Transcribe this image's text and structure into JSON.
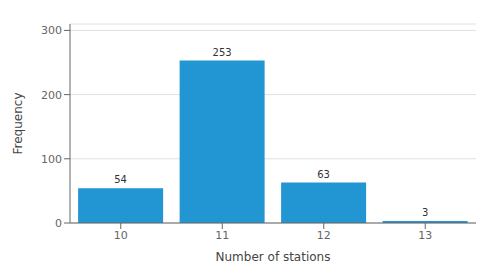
{
  "chart_data": {
    "type": "bar",
    "xlabel": "Number of stations",
    "ylabel": "Frequency",
    "categories": [
      "10",
      "11",
      "12",
      "13"
    ],
    "values": [
      54,
      253,
      63,
      3
    ],
    "color": "#2196d3",
    "ylim": [
      0,
      310
    ],
    "yticks": [
      0,
      100,
      200,
      300
    ],
    "grid": true,
    "data_labels": true
  }
}
